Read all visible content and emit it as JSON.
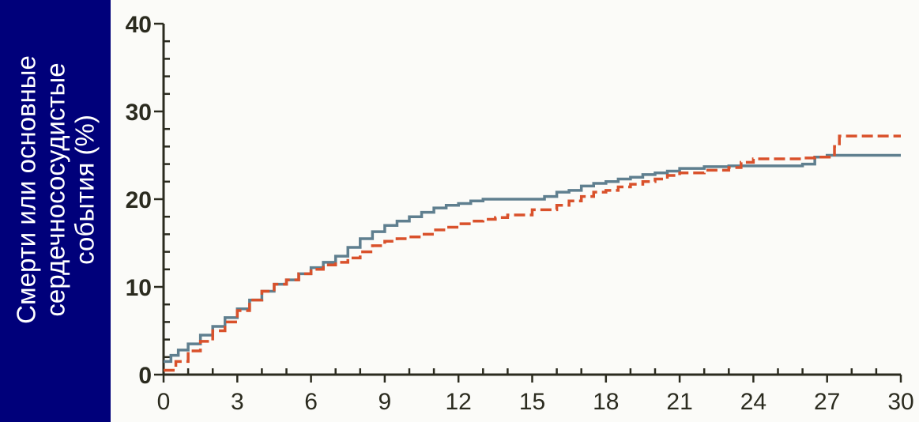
{
  "chart_data": {
    "type": "line",
    "ylabel_lines": [
      "Смерти или основные",
      "сердечнососудистые",
      "события (%)"
    ],
    "xlabel": "",
    "xlim": [
      0,
      30
    ],
    "ylim": [
      0,
      40
    ],
    "x_ticks": [
      0,
      3,
      6,
      9,
      12,
      15,
      18,
      21,
      24,
      27,
      30
    ],
    "x_tick_labels": [
      "0",
      "3",
      "6",
      "9",
      "12",
      "15",
      "18",
      "21",
      "24",
      "27",
      "30"
    ],
    "y_ticks": [
      0,
      10,
      20,
      30,
      40
    ],
    "y_tick_labels": [
      "0",
      "10",
      "20",
      "30",
      "40"
    ],
    "grid": false,
    "series": [
      {
        "color": "#5f7f8f",
        "style": "solid",
        "x": [
          0,
          0.3,
          0.6,
          1,
          1.5,
          2,
          2.5,
          3,
          3.5,
          4,
          4.5,
          5,
          5.5,
          6,
          6.5,
          7,
          7.5,
          8,
          8.5,
          9,
          9.5,
          10,
          10.5,
          11,
          11.5,
          12,
          12.5,
          13,
          14,
          15,
          15.5,
          16,
          16.5,
          17,
          17.5,
          18,
          18.5,
          19,
          19.5,
          20,
          20.5,
          21,
          22,
          23,
          24,
          25,
          26,
          26.5,
          27,
          28,
          29,
          30
        ],
        "y": [
          1.5,
          2.2,
          2.8,
          3.5,
          4.5,
          5.5,
          6.5,
          7.5,
          8.5,
          9.5,
          10.3,
          10.8,
          11.5,
          12.2,
          12.8,
          13.5,
          14.5,
          15.5,
          16.3,
          17,
          17.5,
          18,
          18.5,
          19,
          19.3,
          19.5,
          19.8,
          20,
          20,
          20,
          20.3,
          20.8,
          21,
          21.5,
          21.8,
          22,
          22.3,
          22.5,
          22.8,
          23,
          23.2,
          23.5,
          23.7,
          23.8,
          23.8,
          23.8,
          24,
          24.8,
          25,
          25,
          25,
          25
        ]
      },
      {
        "color": "#d9512b",
        "style": "dashed",
        "x": [
          0,
          0.5,
          1,
          1.5,
          2,
          2.5,
          3,
          3.5,
          4,
          4.5,
          5,
          5.5,
          6,
          6.5,
          7,
          7.5,
          8,
          8.5,
          9,
          9.5,
          10,
          10.5,
          11,
          11.5,
          12,
          12.5,
          13,
          13.5,
          14,
          15,
          16,
          16.5,
          17,
          17.5,
          18,
          18.5,
          19,
          19.5,
          20,
          20.5,
          21,
          22,
          23,
          23.5,
          24,
          25,
          26,
          26.5,
          27,
          27.3,
          27.5,
          28,
          29,
          30
        ],
        "y": [
          0.5,
          1.5,
          2.7,
          3.8,
          5,
          6,
          7.3,
          8.5,
          9.5,
          10.3,
          10.8,
          11.5,
          12,
          12.5,
          12.8,
          13.3,
          14,
          14.7,
          15.2,
          15.5,
          15.7,
          16,
          16.5,
          16.8,
          17.2,
          17.5,
          17.7,
          17.9,
          18.2,
          18.8,
          19.3,
          19.8,
          20.3,
          20.8,
          21,
          21.4,
          21.7,
          22,
          22.3,
          22.7,
          23,
          23.3,
          23.6,
          24.2,
          24.6,
          24.6,
          24.7,
          24.8,
          24.8,
          26,
          27.2,
          27.2,
          27.2,
          27.2
        ]
      }
    ]
  },
  "colors": {
    "ylabel_panel_bg": "#00007a",
    "ylabel_text": "#ffffff",
    "plot_bg": "#fbfbf8",
    "axis": "#2b2b1f",
    "tick_text": "#2b2b1f"
  }
}
